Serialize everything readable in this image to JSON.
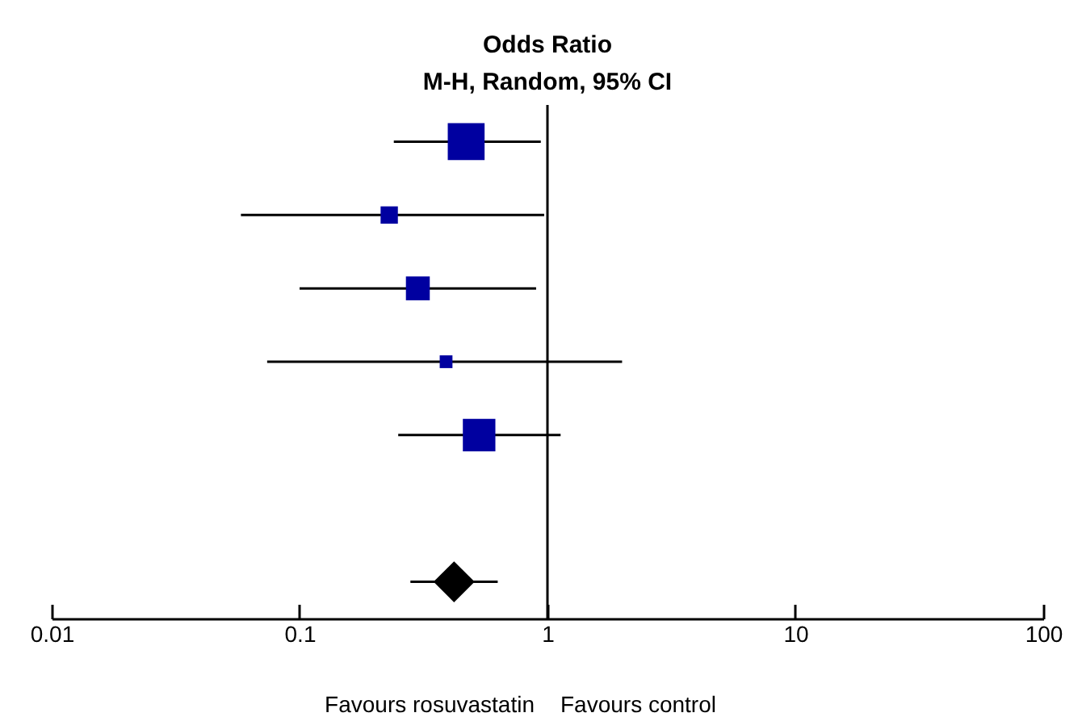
{
  "chart_data": {
    "type": "scatter",
    "title": "Odds Ratio",
    "subtitle": "M-H, Random, 95% CI",
    "orientation": "horizontal",
    "log": "x",
    "tick_labels": "x",
    "xlim": [
      0.01,
      100
    ],
    "xticks": [
      0.01,
      0.1,
      1,
      10,
      100
    ],
    "categories": [
      null,
      null,
      null,
      null,
      null,
      null,
      null
    ],
    "ref_lines": [
      {
        "axis": "x",
        "value": 1,
        "color": "#000000"
      }
    ],
    "annotations": [
      "Favours rosuvastatin",
      "Favours control"
    ],
    "series": [
      {
        "type": "bubble",
        "marker": "square",
        "color": "#0000a0",
        "values": [
          0.47,
          0.23,
          0.3,
          0.39,
          0.53,
          null,
          null
        ],
        "errors": [
          [
            0.24,
            0.94
          ],
          [
            0.058,
            0.97
          ],
          [
            0.1,
            0.9
          ],
          [
            0.074,
            2.0
          ],
          [
            0.25,
            1.13
          ],
          null,
          null
        ],
        "sizes": [
          1,
          0.22,
          0.42,
          0.12,
          0.78,
          null,
          null
        ]
      },
      {
        "type": "scatter",
        "marker": "diamond",
        "color": "#000000",
        "values": [
          null,
          null,
          null,
          null,
          null,
          null,
          0.42
        ],
        "errors": [
          null,
          null,
          null,
          null,
          null,
          null,
          [
            0.28,
            0.63
          ]
        ]
      }
    ]
  }
}
